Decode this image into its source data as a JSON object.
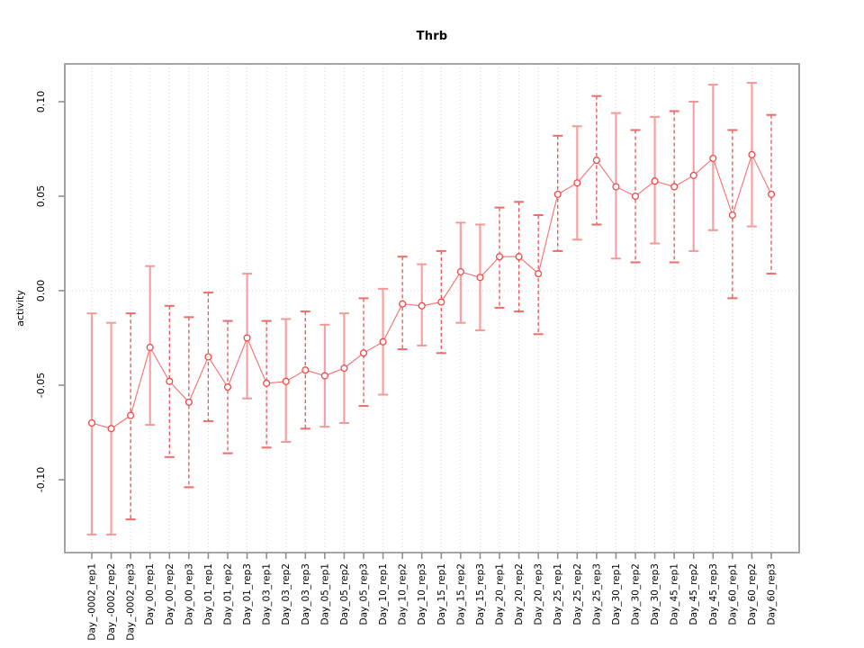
{
  "figure": {
    "background": "#ffffff"
  },
  "chart_data": {
    "type": "scatter",
    "subtype": "point-estimates-with-error-bars",
    "title": "Thrb",
    "xlabel": "",
    "ylabel": "activity",
    "legend": "none",
    "grid": {
      "vertical_dotted_per_category": true,
      "horizontal_dotted_zero_line": true
    },
    "ylim": [
      -0.135,
      0.115
    ],
    "yticks": [
      0.1,
      0.05,
      0.0,
      -0.05,
      -0.1
    ],
    "ytick_labels": [
      "0.10",
      "0.05",
      "0.00",
      "-0.05",
      "-0.10"
    ],
    "categories": [
      "Day_-0002_rep1",
      "Day_-0002_rep2",
      "Day_-0002_rep3",
      "Day_00_rep1",
      "Day_00_rep2",
      "Day_00_rep3",
      "Day_01_rep1",
      "Day_01_rep2",
      "Day_01_rep3",
      "Day_03_rep1",
      "Day_03_rep2",
      "Day_03_rep3",
      "Day_05_rep1",
      "Day_05_rep2",
      "Day_05_rep3",
      "Day_10_rep1",
      "Day_10_rep2",
      "Day_10_rep3",
      "Day_15_rep1",
      "Day_15_rep2",
      "Day_15_rep3",
      "Day_20_rep1",
      "Day_20_rep2",
      "Day_20_rep3",
      "Day_25_rep1",
      "Day_25_rep2",
      "Day_25_rep3",
      "Day_30_rep1",
      "Day_30_rep2",
      "Day_30_rep3",
      "Day_45_rep1",
      "Day_45_rep2",
      "Day_45_rep3",
      "Day_60_rep1",
      "Day_60_rep2",
      "Day_60_rep3"
    ],
    "series": [
      {
        "name": "activity",
        "values": [
          -0.07,
          -0.073,
          -0.066,
          -0.03,
          -0.048,
          -0.059,
          -0.035,
          -0.051,
          -0.025,
          -0.049,
          -0.048,
          -0.042,
          -0.045,
          -0.041,
          -0.033,
          -0.027,
          -0.007,
          -0.008,
          -0.006,
          0.01,
          0.007,
          0.018,
          0.018,
          0.009,
          0.051,
          0.057,
          0.069,
          0.055,
          0.05,
          0.058,
          0.055,
          0.061,
          0.07,
          0.04,
          0.072,
          0.051
        ],
        "lower": [
          -0.129,
          -0.129,
          -0.121,
          -0.071,
          -0.088,
          -0.104,
          -0.069,
          -0.086,
          -0.057,
          -0.083,
          -0.08,
          -0.073,
          -0.072,
          -0.07,
          -0.061,
          -0.055,
          -0.031,
          -0.029,
          -0.033,
          -0.017,
          -0.021,
          -0.009,
          -0.011,
          -0.023,
          0.021,
          0.027,
          0.035,
          0.017,
          0.015,
          0.025,
          0.015,
          0.021,
          0.032,
          -0.004,
          0.034,
          0.009
        ],
        "upper": [
          -0.012,
          -0.017,
          -0.012,
          0.013,
          -0.008,
          -0.014,
          -0.001,
          -0.016,
          0.009,
          -0.016,
          -0.015,
          -0.011,
          -0.018,
          -0.012,
          -0.004,
          0.001,
          0.018,
          0.014,
          0.021,
          0.036,
          0.035,
          0.044,
          0.047,
          0.04,
          0.082,
          0.087,
          0.103,
          0.094,
          0.085,
          0.092,
          0.095,
          0.1,
          0.109,
          0.085,
          0.11,
          0.093
        ],
        "bar_styles": [
          "solid",
          "solid",
          "dashed",
          "solid",
          "dashed",
          "dashed",
          "dashed",
          "dashed",
          "solid",
          "dashed",
          "solid",
          "dashed",
          "solid",
          "solid",
          "dashed",
          "solid",
          "dashed",
          "solid",
          "dashed",
          "solid",
          "solid",
          "dashed",
          "dashed",
          "dashed",
          "dashed",
          "solid",
          "dashed",
          "solid",
          "dashed",
          "solid",
          "dashed",
          "solid",
          "solid",
          "dashed",
          "solid",
          "dashed"
        ]
      }
    ],
    "colors": {
      "point": "#f04747",
      "connect_line": "#f47070",
      "errorbar_solid": "#f9a0a0",
      "errorbar_dashed": "#e85353",
      "errorbar_cap_solid": "#f59898",
      "errorbar_cap_dashed": "#ec6b6b",
      "grid": "#d8d8d8",
      "box": "#8f8f8f",
      "tick": "#8f8f8f",
      "text": "#000000"
    }
  }
}
